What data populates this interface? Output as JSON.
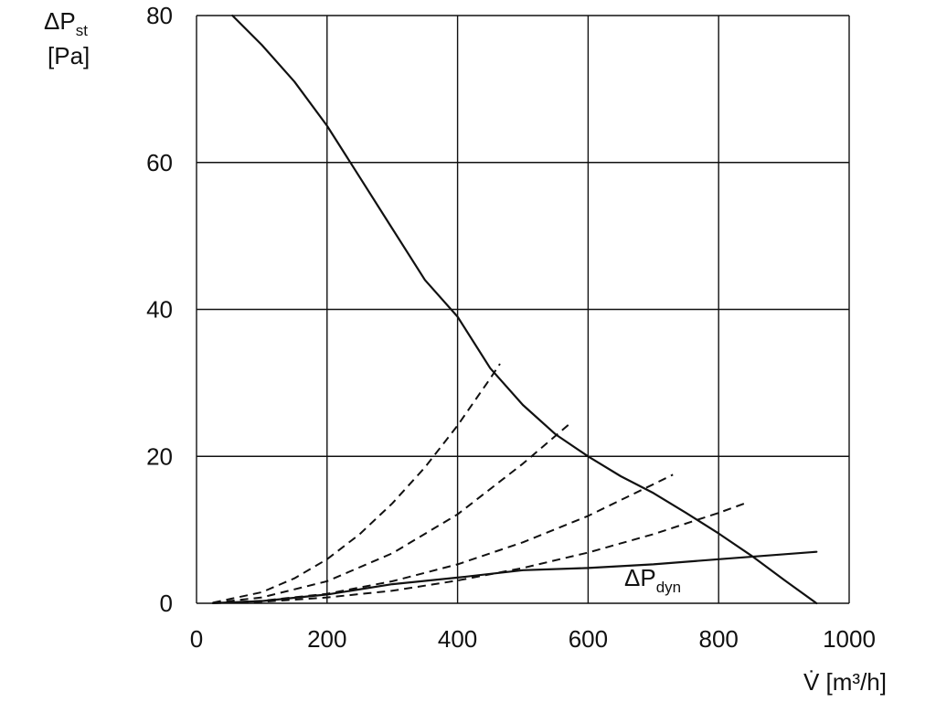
{
  "chart_data": {
    "type": "line",
    "xlabel_symbol": "V̇",
    "xlabel_unit": "[m³/h]",
    "ylabel_symbol": "ΔP",
    "ylabel_sub": "st",
    "ylabel_unit": "[Pa]",
    "xlim": [
      0,
      1000
    ],
    "ylim": [
      0,
      80
    ],
    "x_ticks": [
      0,
      200,
      400,
      600,
      800,
      1000
    ],
    "y_ticks": [
      0,
      20,
      40,
      60,
      80
    ],
    "grid": true,
    "annotation": {
      "symbol": "ΔP",
      "sub": "dyn"
    },
    "series": [
      {
        "style": "solid",
        "points": [
          [
            55,
            80
          ],
          [
            100,
            76
          ],
          [
            150,
            71
          ],
          [
            200,
            65
          ],
          [
            250,
            58
          ],
          [
            300,
            51
          ],
          [
            350,
            44
          ],
          [
            400,
            39
          ],
          [
            450,
            32
          ],
          [
            500,
            27
          ],
          [
            550,
            23
          ],
          [
            600,
            20
          ],
          [
            650,
            17.3
          ],
          [
            700,
            15
          ],
          [
            750,
            12.3
          ],
          [
            800,
            9.5
          ],
          [
            850,
            6.5
          ],
          [
            900,
            3.2
          ],
          [
            950,
            0
          ]
        ]
      },
      {
        "style": "solid",
        "points": [
          [
            25,
            0.02
          ],
          [
            100,
            0.3
          ],
          [
            200,
            1.2
          ],
          [
            300,
            2.6
          ],
          [
            400,
            3.5
          ],
          [
            500,
            4.5
          ],
          [
            600,
            4.8
          ],
          [
            700,
            5.3
          ],
          [
            800,
            6.0
          ],
          [
            950,
            7.0
          ]
        ]
      },
      {
        "style": "dashed",
        "points": [
          [
            25,
            0.09
          ],
          [
            100,
            1.5
          ],
          [
            150,
            3.4
          ],
          [
            200,
            6.0
          ],
          [
            250,
            9.4
          ],
          [
            300,
            13.6
          ],
          [
            350,
            18.5
          ],
          [
            400,
            24.2
          ],
          [
            450,
            30.6
          ],
          [
            465,
            32.6
          ]
        ]
      },
      {
        "style": "dashed",
        "points": [
          [
            25,
            0.05
          ],
          [
            100,
            0.8
          ],
          [
            200,
            3.0
          ],
          [
            300,
            6.8
          ],
          [
            400,
            12.1
          ],
          [
            500,
            19.0
          ],
          [
            570,
            24.3
          ]
        ]
      },
      {
        "style": "dashed",
        "points": [
          [
            25,
            0.02
          ],
          [
            100,
            0.33
          ],
          [
            200,
            1.3
          ],
          [
            300,
            3.0
          ],
          [
            400,
            5.3
          ],
          [
            500,
            8.3
          ],
          [
            600,
            11.9
          ],
          [
            700,
            16.2
          ],
          [
            730,
            17.5
          ]
        ]
      },
      {
        "style": "dashed",
        "points": [
          [
            25,
            0.01
          ],
          [
            100,
            0.2
          ],
          [
            200,
            0.8
          ],
          [
            300,
            1.7
          ],
          [
            400,
            3.1
          ],
          [
            500,
            4.8
          ],
          [
            600,
            6.9
          ],
          [
            700,
            9.4
          ],
          [
            800,
            12.3
          ],
          [
            840,
            13.6
          ]
        ]
      }
    ]
  }
}
